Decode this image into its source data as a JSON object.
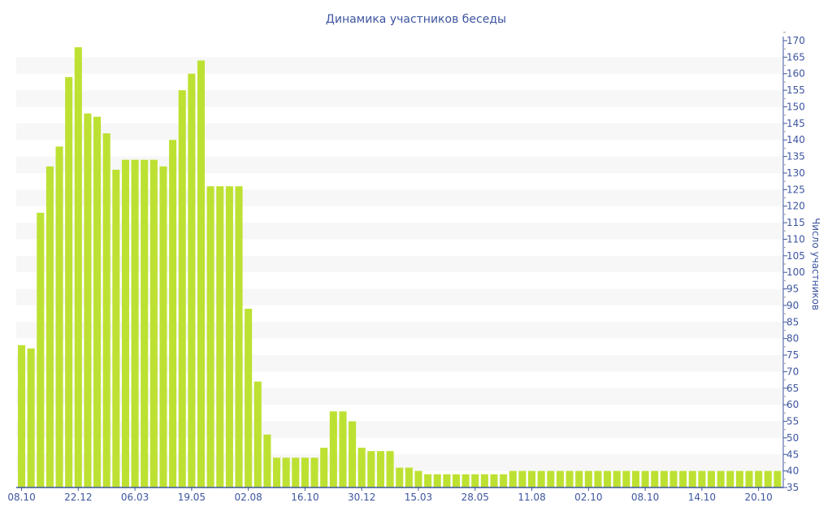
{
  "chart_data": {
    "type": "bar",
    "title": "Динамика участников беседы",
    "xlabel": "",
    "ylabel": "Число участников",
    "ylim": [
      35,
      170
    ],
    "ytick_step": 5,
    "y_axis_side": "right",
    "grid": "alternating horizontal bands",
    "bar_color": "#bde132",
    "axis_color": "#3d55a0",
    "x_tick_labels": [
      "08.10",
      "22.12",
      "06.03",
      "19.05",
      "02.08",
      "16.10",
      "30.12",
      "15.03",
      "28.05",
      "11.08",
      "02.10",
      "08.10",
      "14.10",
      "20.10"
    ],
    "x_tick_every": 6,
    "values": [
      78,
      77,
      118,
      132,
      138,
      159,
      168,
      148,
      147,
      142,
      131,
      134,
      134,
      134,
      134,
      132,
      140,
      155,
      160,
      164,
      126,
      126,
      126,
      126,
      89,
      67,
      51,
      44,
      44,
      44,
      44,
      44,
      47,
      58,
      58,
      55,
      47,
      46,
      46,
      46,
      41,
      41,
      40,
      39,
      39,
      39,
      39,
      39,
      39,
      39,
      39,
      39,
      40,
      40,
      40,
      40,
      40,
      40,
      40,
      40,
      40,
      40,
      40,
      40,
      40,
      40,
      40,
      40,
      40,
      40,
      40,
      40,
      40,
      40,
      40,
      40,
      40,
      40,
      40,
      40,
      40
    ]
  }
}
